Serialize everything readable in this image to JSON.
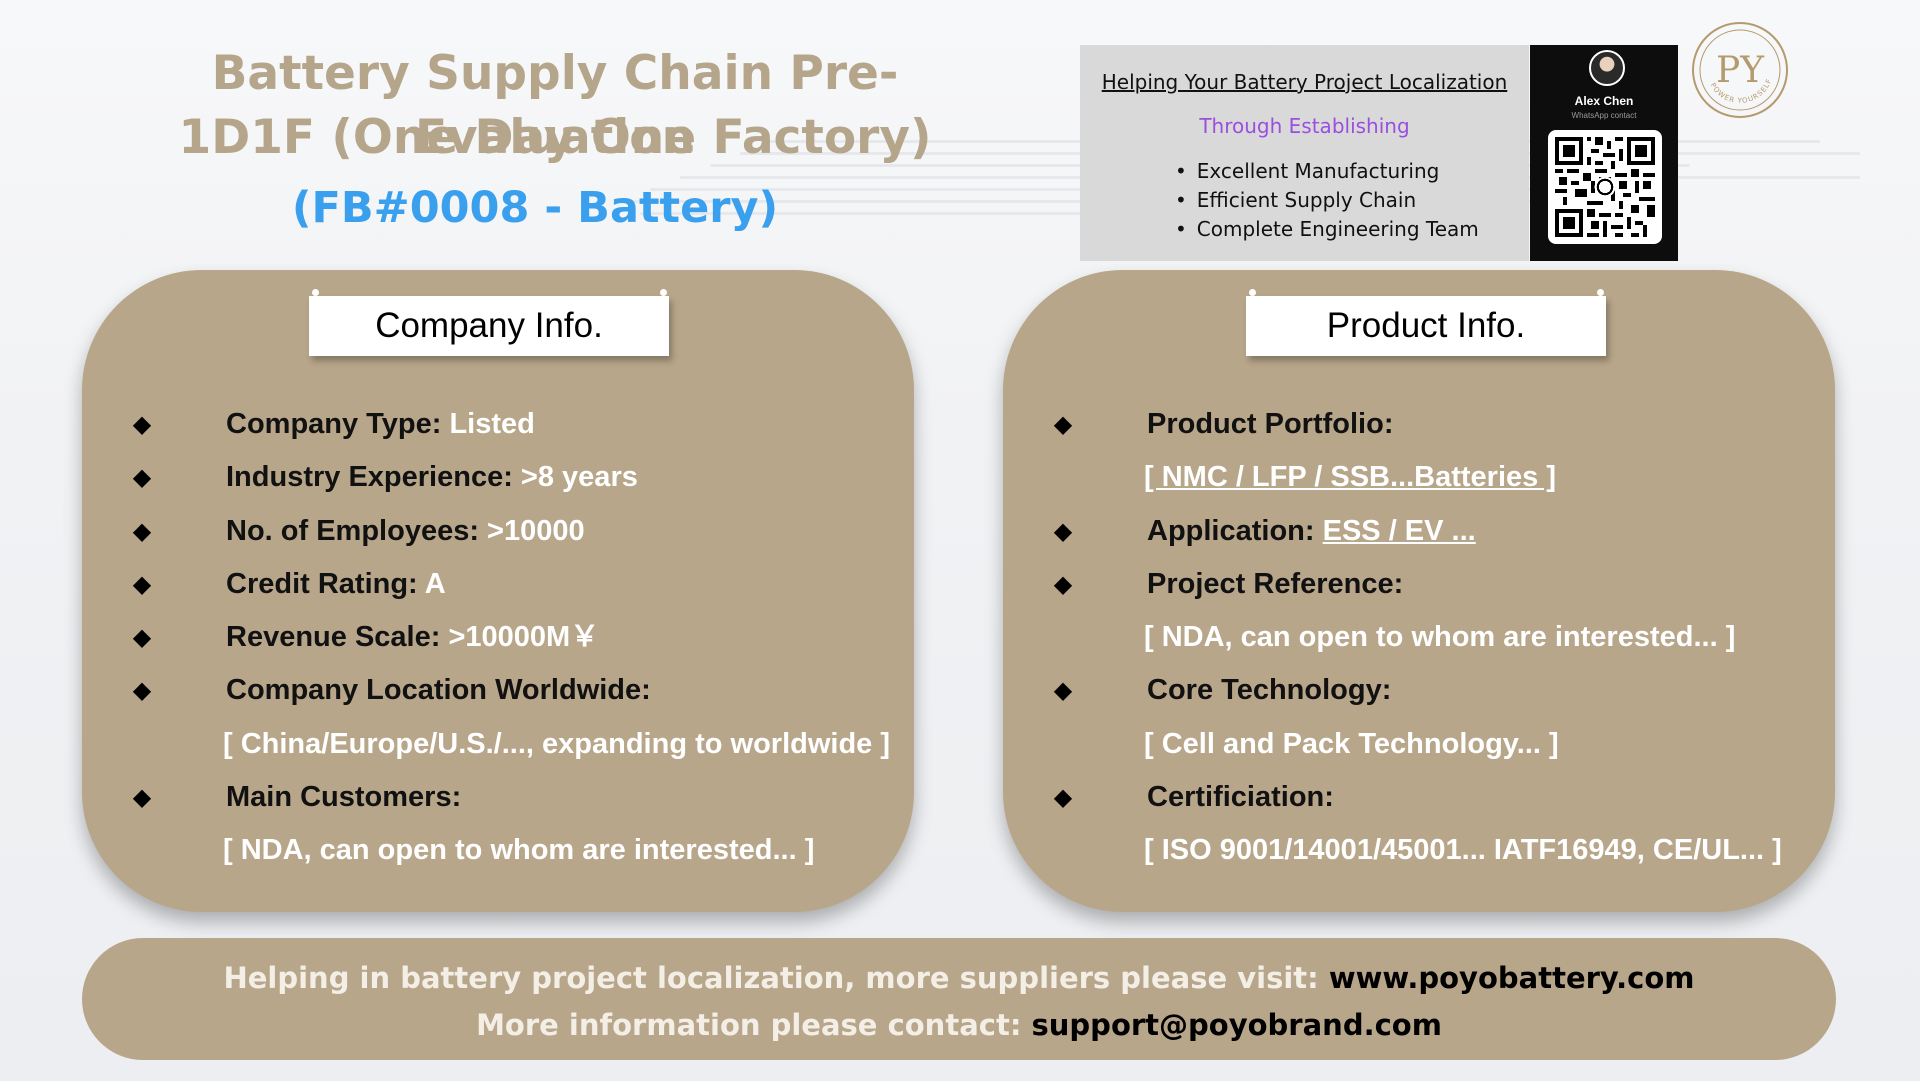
{
  "header": {
    "title_line1": "Battery Supply Chain Pre-Evaluation",
    "title_line2": "1D1F (One Day One Factory)",
    "subtitle": "(FB#0008 - Battery)"
  },
  "promo": {
    "headline": "Helping Your Battery Project Localization",
    "subheadline": "Through Establishing",
    "items": [
      "Excellent Manufacturing",
      "Efficient Supply Chain",
      "Complete Engineering Team"
    ]
  },
  "contact_card": {
    "name": "Alex Chen",
    "note": "WhatsApp contact",
    "icons": [
      "avatar",
      "qr-code-icon",
      "whatsapp-icon"
    ]
  },
  "brand": {
    "logo_text": "PY",
    "seal_text": "POWER YOURSELF",
    "icon": "brand-logo-icon",
    "color": "#b59a6d"
  },
  "company": {
    "title": "Company Info.",
    "rows": [
      {
        "label": "Company Type:",
        "value": " Listed"
      },
      {
        "label": "Industry Experience:",
        "value": " >8 years"
      },
      {
        "label": "No. of Employees:",
        "value": " >10000"
      },
      {
        "label": "Credit Rating:",
        "value": " A"
      },
      {
        "label": "Revenue Scale:",
        "value": " >10000M￥"
      },
      {
        "label": "Company Location Worldwide:",
        "value": ""
      }
    ],
    "location_detail": "[ China/Europe/U.S./..., expanding to worldwide ]",
    "customers_label": "Main Customers:",
    "customers_detail": "[ NDA, can open to whom are interested... ]"
  },
  "product": {
    "title": "Product Info.",
    "portfolio_label": "Product Portfolio:",
    "portfolio_detail": "[ NMC / LFP / SSB...Batteries ]",
    "application_label": "Application:",
    "application_value": "ESS / EV ...",
    "reference_label": "Project Reference:",
    "reference_detail": "[ NDA, can open to whom are interested...  ]",
    "technology_label": "Core Technology:",
    "technology_detail": "[ Cell and Pack Technology... ]",
    "certification_label": "Certificiation:",
    "certification_detail": "[ ISO 9001/14001/45001... IATF16949, CE/UL... ]"
  },
  "footer": {
    "line1_text": "Helping in battery project localization, more suppliers please visit: ",
    "line1_link": "www.poyobattery.com",
    "line2_text": "More information please contact: ",
    "line2_link": "support@poyobrand.com"
  },
  "colors": {
    "panel": "#b8a68a",
    "title": "#b5a58a",
    "subtitle": "#3aa0ee",
    "promo_accent": "#9b4fe0",
    "value_text": "#ffffff"
  }
}
